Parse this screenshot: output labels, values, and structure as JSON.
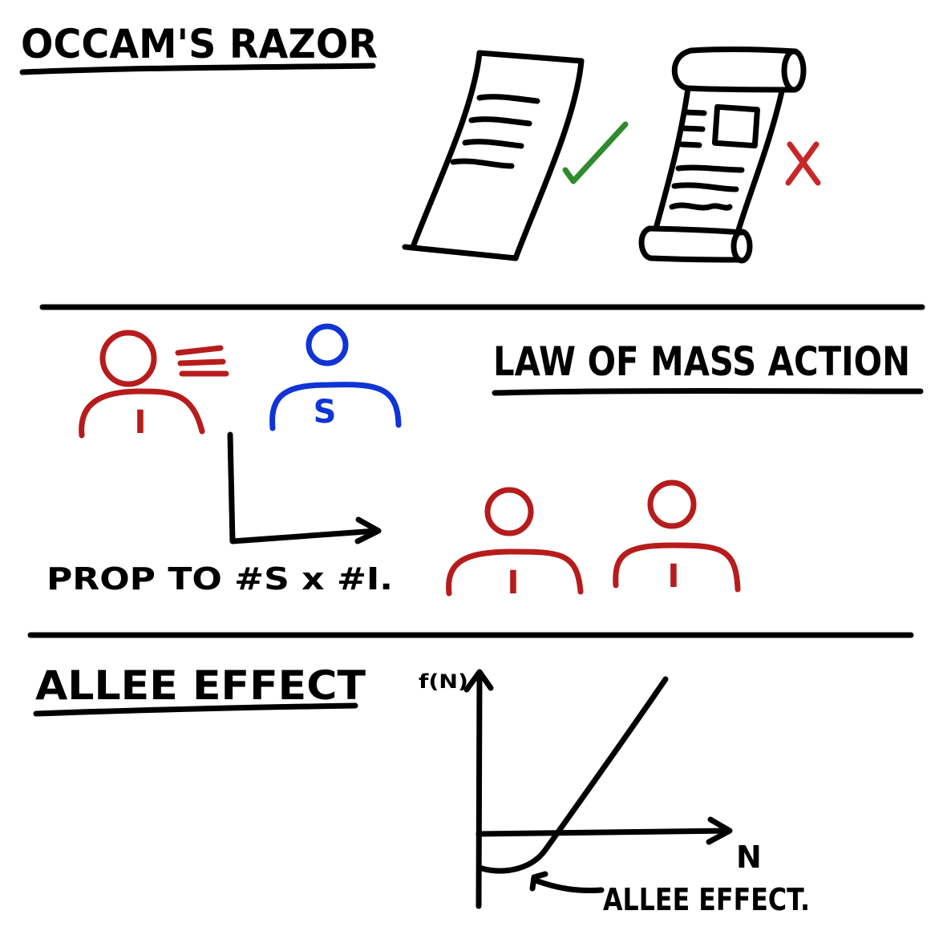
{
  "colors": {
    "ink": "#000000",
    "infected": "#b71c1c",
    "susceptible": "#1034d6",
    "check": "#2e8b2e",
    "cross": "#c62828"
  },
  "occam": {
    "title": "OCCAM'S RAZOR",
    "simple_doc_icon": "simple-paper-icon",
    "complex_doc_icon": "complex-scroll-icon",
    "simple_mark_icon": "check-mark-icon",
    "complex_mark_icon": "cross-mark-icon"
  },
  "mass_action": {
    "title": "LAW OF MASS ACTION",
    "infected_letter": "I",
    "susceptible_letter": "S",
    "caption": "PROP TO #S x #I."
  },
  "allee": {
    "title": "ALLEE EFFECT",
    "y_axis_label": "f(N)",
    "x_axis_label": "N",
    "annotation": "ALLEE EFFECT."
  }
}
